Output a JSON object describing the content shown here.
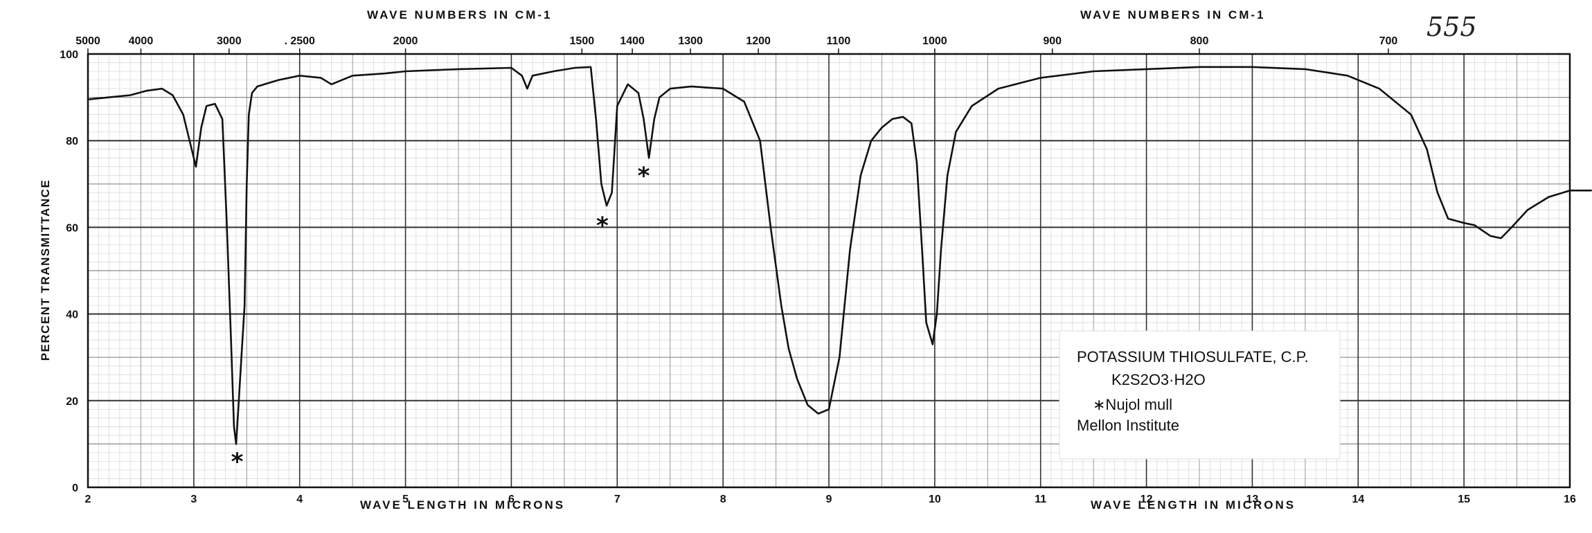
{
  "page_number": "555",
  "chart_data": {
    "type": "line",
    "top_axis_label_left": "WAVE NUMBERS IN CM-1",
    "top_axis_label_right": "WAVE NUMBERS IN CM-1",
    "xlabel_left": "WAVE LENGTH IN MICRONS",
    "xlabel_right": "WAVE LENGTH IN MICRONS",
    "ylabel": "PERCENT TRANSMITTANCE",
    "xlim": [
      2,
      16
    ],
    "ylim": [
      0,
      100
    ],
    "grid": true,
    "x_ticks": [
      "2",
      "3",
      "4",
      "5",
      "6",
      "7",
      "8",
      "9",
      "10",
      "11",
      "12",
      "13",
      "14",
      "15",
      "16"
    ],
    "y_ticks": [
      "0",
      "20",
      "40",
      "60",
      "80",
      "100"
    ],
    "top_ticks": [
      {
        "label": "5000",
        "wavenumber": 5000
      },
      {
        "label": "4000",
        "wavenumber": 4000
      },
      {
        "label": "3000",
        "wavenumber": 3000
      },
      {
        "label": ". 2500",
        "wavenumber": 2500
      },
      {
        "label": "2000",
        "wavenumber": 2000
      },
      {
        "label": "1500",
        "wavenumber": 1500
      },
      {
        "label": "1400",
        "wavenumber": 1400
      },
      {
        "label": "1300",
        "wavenumber": 1300
      },
      {
        "label": "1200",
        "wavenumber": 1200
      },
      {
        "label": "1100",
        "wavenumber": 1100
      },
      {
        "label": "1000",
        "wavenumber": 1000
      },
      {
        "label": "900",
        "wavenumber": 900
      },
      {
        "label": "800",
        "wavenumber": 800
      },
      {
        "label": "700",
        "wavenumber": 700
      }
    ],
    "series": [
      {
        "color": "#111111",
        "x": [
          2.0,
          2.2,
          2.4,
          2.55,
          2.7,
          2.8,
          2.9,
          2.97,
          3.02,
          3.07,
          3.12,
          3.2,
          3.27,
          3.31,
          3.35,
          3.38,
          3.4,
          3.42,
          3.45,
          3.48,
          3.5,
          3.52,
          3.55,
          3.6,
          3.8,
          4.0,
          4.2,
          4.3,
          4.5,
          4.8,
          5.0,
          5.5,
          6.0,
          6.1,
          6.15,
          6.2,
          6.4,
          6.6,
          6.75,
          6.8,
          6.85,
          6.9,
          6.95,
          7.0,
          7.1,
          7.2,
          7.25,
          7.3,
          7.35,
          7.4,
          7.5,
          7.7,
          8.0,
          8.2,
          8.35,
          8.45,
          8.55,
          8.62,
          8.7,
          8.8,
          8.9,
          9.0,
          9.1,
          9.2,
          9.3,
          9.4,
          9.5,
          9.6,
          9.7,
          9.78,
          9.83,
          9.88,
          9.92,
          9.98,
          10.02,
          10.06,
          10.12,
          10.2,
          10.35,
          10.6,
          11.0,
          11.5,
          12.0,
          12.5,
          13.0,
          13.5,
          13.9,
          14.2,
          14.5,
          14.65,
          14.75,
          14.85,
          15.0,
          15.1,
          15.25,
          15.35,
          15.45,
          15.6,
          15.8,
          16.0,
          16.2
        ],
        "y": [
          89.5,
          90,
          90.5,
          91.5,
          92,
          90.5,
          86,
          79,
          74,
          83,
          88,
          88.5,
          85,
          62,
          35,
          14,
          10,
          18,
          30,
          42,
          70,
          86,
          91,
          92.5,
          94,
          95,
          94.5,
          93,
          95,
          95.5,
          96,
          96.5,
          96.8,
          95,
          92,
          95,
          96,
          96.8,
          97,
          85,
          70,
          65,
          68,
          88,
          93,
          91,
          85,
          76,
          85,
          90,
          92,
          92.5,
          92,
          89,
          80,
          60,
          42,
          32,
          25,
          19,
          17,
          18,
          30,
          55,
          72,
          80,
          83,
          85,
          85.5,
          84,
          75,
          55,
          38,
          33,
          40,
          55,
          72,
          82,
          88,
          92,
          94.5,
          96,
          96.5,
          97,
          97,
          96.5,
          95,
          92,
          86,
          78,
          68,
          62,
          61,
          60.5,
          58,
          57.5,
          60,
          64,
          67,
          68.5,
          68.5
        ]
      }
    ],
    "annotations": [
      {
        "text": "*",
        "x": 3.41,
        "y": 6
      },
      {
        "text": "*",
        "x": 6.86,
        "y": 60.5
      },
      {
        "text": "*",
        "x": 7.25,
        "y": 72
      }
    ]
  },
  "legend_box": {
    "line1": "POTASSIUM THIOSULFATE, C.P.",
    "formula": "K2S2O3·H2O",
    "line3": "∗Nujol mull",
    "line4": "Mellon Institute"
  }
}
